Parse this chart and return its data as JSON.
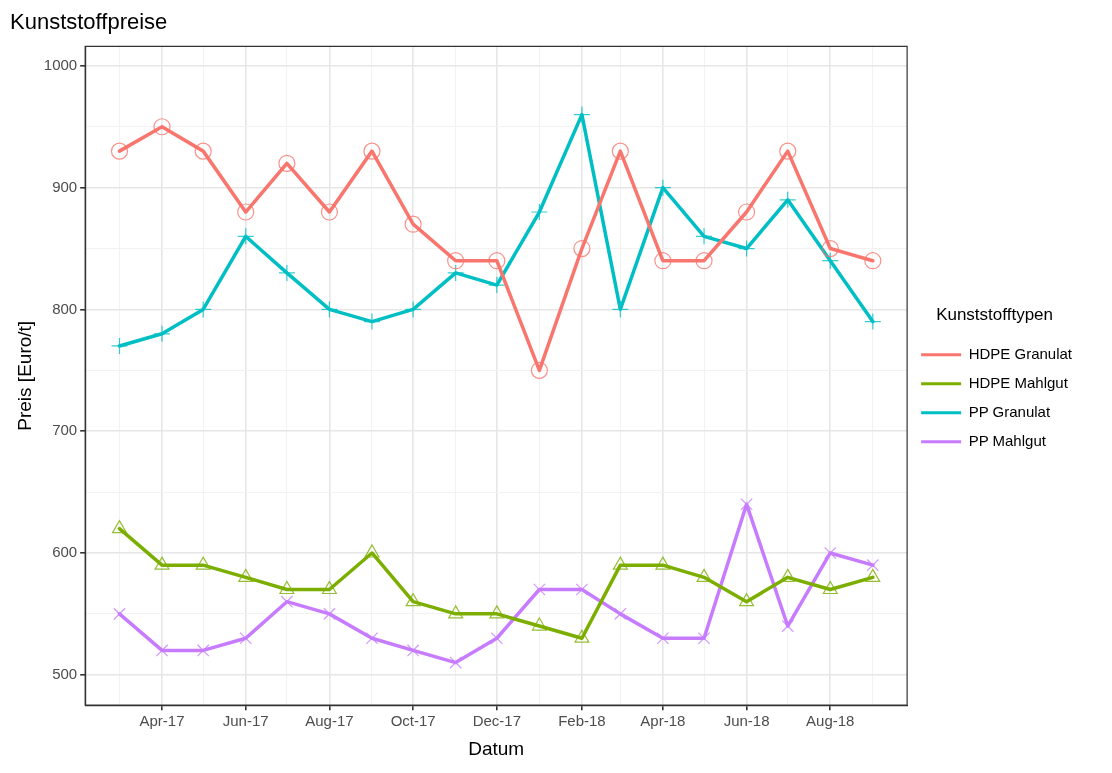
{
  "chart_data": {
    "type": "line",
    "title": "Kunststoffpreise",
    "xlabel": "Datum",
    "ylabel": "Preis [Euro/t]",
    "legend_title": "Kunststofftypen",
    "legend": "right",
    "grid": true,
    "x": [
      "2017-03",
      "2017-04",
      "2017-05",
      "2017-06",
      "2017-07",
      "2017-08",
      "2017-09",
      "2017-10",
      "2017-11",
      "2017-12",
      "2018-01",
      "2018-02",
      "2018-03",
      "2018-04",
      "2018-05",
      "2018-06",
      "2018-07",
      "2018-08",
      "2018-09"
    ],
    "xlim": [
      "2017-02-04",
      "2018-09-26"
    ],
    "xticks": [
      {
        "value": "2017-03",
        "label": null
      },
      {
        "value": "2017-04",
        "label": "Apr-17"
      },
      {
        "value": "2017-05",
        "label": null
      },
      {
        "value": "2017-06",
        "label": "Jun-17"
      },
      {
        "value": "2017-07",
        "label": null
      },
      {
        "value": "2017-08",
        "label": "Aug-17"
      },
      {
        "value": "2017-09",
        "label": null
      },
      {
        "value": "2017-10",
        "label": "Oct-17"
      },
      {
        "value": "2017-11",
        "label": null
      },
      {
        "value": "2017-12",
        "label": "Dec-17"
      },
      {
        "value": "2018-01",
        "label": null
      },
      {
        "value": "2018-02",
        "label": "Feb-18"
      },
      {
        "value": "2018-03",
        "label": null
      },
      {
        "value": "2018-04",
        "label": "Apr-18"
      },
      {
        "value": "2018-05",
        "label": null
      },
      {
        "value": "2018-06",
        "label": "Jun-18"
      },
      {
        "value": "2018-07",
        "label": null
      },
      {
        "value": "2018-08",
        "label": "Aug-18"
      },
      {
        "value": "2018-09",
        "label": null
      }
    ],
    "ylim": [
      475,
      1016
    ],
    "yticks": [
      500,
      {
        "value": 550,
        "label": null
      },
      600,
      {
        "value": 650,
        "label": null
      },
      700,
      {
        "value": 750,
        "label": null
      },
      800,
      {
        "value": 850,
        "label": null
      },
      900,
      {
        "value": 950,
        "label": null
      },
      1000
    ],
    "series": [
      {
        "name": "HDPE Granulat",
        "color": "#f8766d",
        "marker": "circle",
        "values": [
          930,
          950,
          930,
          880,
          920,
          880,
          930,
          870,
          840,
          840,
          750,
          850,
          930,
          840,
          840,
          880,
          930,
          850,
          840
        ]
      },
      {
        "name": "HDPE Mahlgut",
        "color": "#7cae00",
        "marker": "triangle",
        "values": [
          620,
          590,
          590,
          580,
          570,
          570,
          600,
          560,
          550,
          550,
          540,
          530,
          590,
          590,
          580,
          560,
          580,
          570,
          580
        ]
      },
      {
        "name": "PP Granulat",
        "color": "#00bfc4",
        "marker": "cross",
        "values": [
          770,
          780,
          800,
          860,
          830,
          800,
          790,
          800,
          830,
          820,
          880,
          960,
          800,
          900,
          860,
          850,
          890,
          840,
          790
        ]
      },
      {
        "name": "PP Mahlgut",
        "color": "#c77cff",
        "marker": "x",
        "values": [
          550,
          520,
          520,
          530,
          560,
          550,
          530,
          520,
          510,
          530,
          570,
          570,
          550,
          530,
          530,
          640,
          540,
          600,
          590
        ]
      }
    ]
  }
}
